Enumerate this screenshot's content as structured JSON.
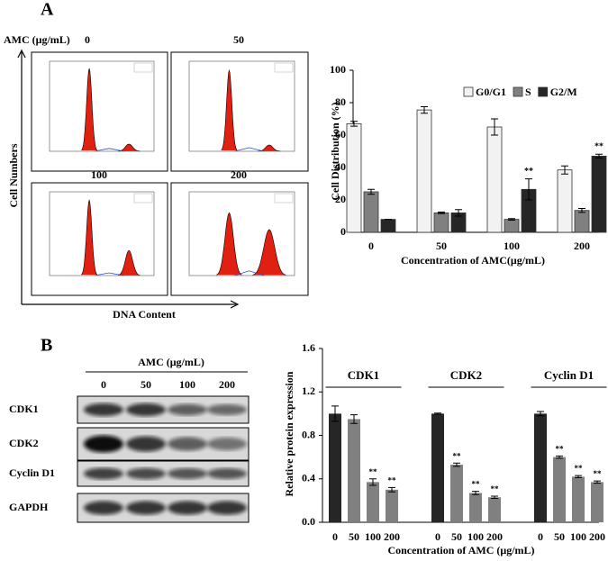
{
  "panels": {
    "a": "A",
    "b": "B"
  },
  "flow": {
    "dose_label": "AMC (μg/mL)",
    "doses": [
      "0",
      "50",
      "100",
      "200"
    ],
    "y_label": "Cell Numbers",
    "x_label": "DNA Content"
  },
  "blot": {
    "title": "AMC (μg/mL)",
    "doses": [
      "0",
      "50",
      "100",
      "200"
    ],
    "proteins": [
      "CDK1",
      "CDK2",
      "Cyclin D1",
      "GAPDH"
    ]
  },
  "chart_data": [
    {
      "type": "bar",
      "y_label": "Cell Distribution (%)",
      "x_label": "Concentration of AMC(μg/mL)",
      "categories": [
        "0",
        "50",
        "100",
        "200"
      ],
      "legend": "top-right",
      "ylim": [
        0,
        100
      ],
      "yticks": [
        0,
        20,
        40,
        60,
        80,
        100
      ],
      "series": [
        {
          "name": "G0/G1",
          "color": "#f2f2f2",
          "values": [
            67,
            75.5,
            65,
            38.5
          ],
          "errors": [
            1.5,
            2,
            5,
            2.5
          ],
          "labels": [
            null,
            null,
            null,
            null
          ]
        },
        {
          "name": "S",
          "color": "#808080",
          "values": [
            25,
            12,
            8,
            13.5
          ],
          "errors": [
            1.5,
            0.5,
            0.5,
            1.2
          ],
          "labels": [
            null,
            null,
            null,
            null
          ]
        },
        {
          "name": "G2/M",
          "color": "#262626",
          "values": [
            8,
            12,
            26.5,
            47
          ],
          "errors": [
            0,
            2,
            6.5,
            1.2
          ],
          "labels": [
            null,
            null,
            "**",
            "**"
          ]
        }
      ]
    },
    {
      "type": "grouped-bar",
      "y_label": "Relative protein expression",
      "x_label": "Concentration of AMC  (μg/mL)",
      "ylim": [
        0,
        1.6
      ],
      "yticks": [
        {
          "value": 0,
          "label": "0.0"
        },
        0.4,
        0.8,
        1.2,
        1.6
      ],
      "colors": [
        "#262626",
        "#808080",
        "#808080",
        "#808080"
      ],
      "groups": [
        {
          "name": "CDK1",
          "categories": [
            "0",
            "50",
            "100",
            "200"
          ],
          "values": [
            1.0,
            0.95,
            0.37,
            0.3
          ],
          "errors": [
            0.07,
            0.04,
            0.03,
            0.02
          ],
          "labels": [
            null,
            null,
            "**",
            "**"
          ]
        },
        {
          "name": "CDK2",
          "categories": [
            "0",
            "50",
            "100",
            "200"
          ],
          "values": [
            1.0,
            0.53,
            0.27,
            0.23
          ],
          "errors": [
            0.005,
            0.015,
            0.015,
            0.01
          ],
          "labels": [
            null,
            "**",
            "**",
            "**"
          ]
        },
        {
          "name": "Cyclin D1",
          "categories": [
            "0",
            "50",
            "100",
            "200"
          ],
          "values": [
            1.0,
            0.6,
            0.42,
            0.37
          ],
          "errors": [
            0.02,
            0.01,
            0.01,
            0.01
          ],
          "labels": [
            null,
            "**",
            "**",
            "**"
          ]
        }
      ]
    }
  ]
}
